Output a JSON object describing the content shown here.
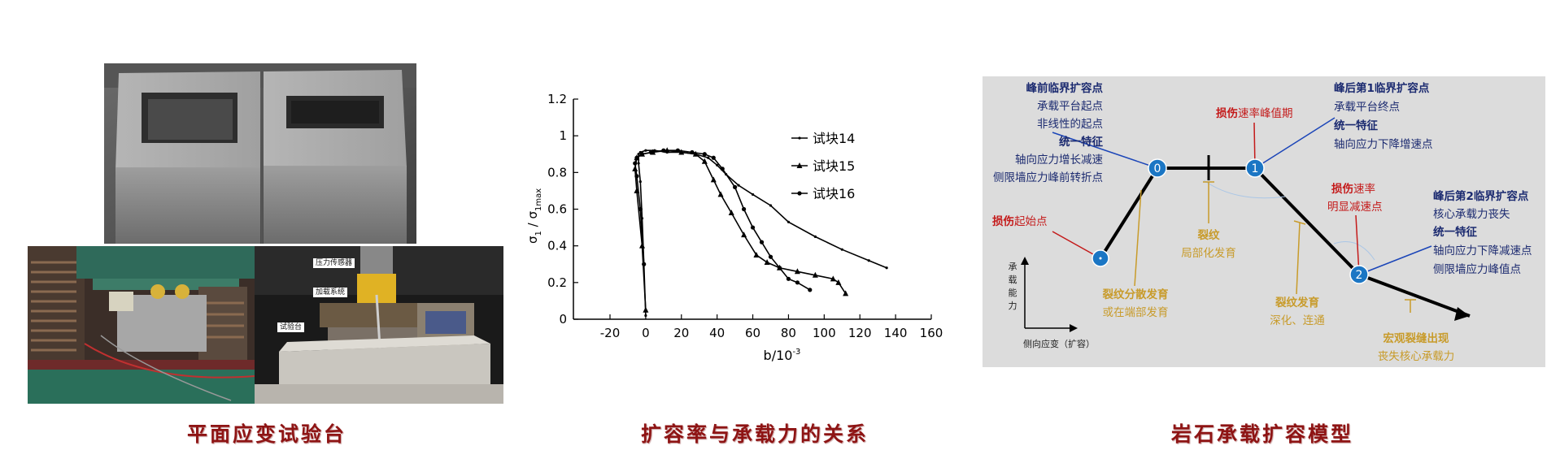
{
  "captions": {
    "left": "平面应变试验台",
    "middle": "扩容率与承载力的关系",
    "right": "岩石承载扩容模型"
  },
  "photo_labels": {
    "sensor": "压力传感器",
    "loading": "加载系统",
    "platform": "试验台"
  },
  "chart_data": {
    "type": "line",
    "title": "",
    "xlabel": "b/10",
    "xlabel_exp": "-3",
    "ylabel": "σ",
    "ylabel_sub1": "1",
    "ylabel_mid": " / σ",
    "ylabel_sub2": "1max",
    "xlim": [
      -20,
      160
    ],
    "ylim": [
      0,
      1.2
    ],
    "xticks": [
      "-20",
      "0",
      "20",
      "40",
      "60",
      "80",
      "100",
      "120",
      "140",
      "160"
    ],
    "yticks": [
      "0",
      "0.2",
      "0.4",
      "0.6",
      "0.8",
      "1",
      "1.2"
    ],
    "legend_position": "top-right",
    "series": [
      {
        "name": "试块14",
        "marker": "line",
        "x": [
          0,
          -1,
          -2,
          -3,
          -4,
          -4,
          -3,
          0,
          5,
          12,
          20,
          28,
          35,
          40,
          45,
          52,
          60,
          70,
          80,
          95,
          110,
          125,
          135
        ],
        "y": [
          0.02,
          0.3,
          0.55,
          0.75,
          0.85,
          0.9,
          0.91,
          0.92,
          0.92,
          0.91,
          0.91,
          0.9,
          0.88,
          0.84,
          0.79,
          0.73,
          0.68,
          0.62,
          0.53,
          0.45,
          0.38,
          0.32,
          0.28
        ]
      },
      {
        "name": "试块15",
        "marker": "triangle",
        "x": [
          0,
          -2,
          -5,
          -6,
          -5,
          -2,
          4,
          12,
          20,
          28,
          33,
          38,
          42,
          48,
          55,
          62,
          68,
          75,
          85,
          95,
          105,
          108,
          112
        ],
        "y": [
          0.05,
          0.4,
          0.7,
          0.82,
          0.88,
          0.9,
          0.91,
          0.92,
          0.91,
          0.9,
          0.86,
          0.76,
          0.68,
          0.58,
          0.46,
          0.35,
          0.31,
          0.28,
          0.26,
          0.24,
          0.22,
          0.2,
          0.14
        ]
      },
      {
        "name": "试块16",
        "marker": "circle",
        "x": [
          -1,
          -3,
          -5,
          -6,
          -5,
          -2,
          3,
          10,
          18,
          26,
          33,
          38,
          43,
          50,
          55,
          60,
          65,
          70,
          75,
          80,
          85,
          92
        ],
        "y": [
          0.3,
          0.6,
          0.78,
          0.85,
          0.88,
          0.9,
          0.91,
          0.92,
          0.92,
          0.91,
          0.9,
          0.88,
          0.82,
          0.72,
          0.6,
          0.5,
          0.42,
          0.34,
          0.28,
          0.22,
          0.2,
          0.16
        ]
      }
    ]
  },
  "model": {
    "pre_peak_title": "峰前临界扩容点",
    "pre_peak_lines": [
      "承载平台起点",
      "非线性的起点"
    ],
    "pre_peak_unified": "统一特征",
    "pre_peak_features": [
      "轴向应力增长减速",
      "侧限墙应力峰前转折点"
    ],
    "post1_title": "峰后第1临界扩容点",
    "post1_line": "承载平台终点",
    "post1_unified": "统一特征",
    "post1_feature": "轴向应力下降增速点",
    "post2_title": "峰后第2临界扩容点",
    "post2_line": "核心承载力丧失",
    "post2_unified": "统一特征",
    "post2_features": [
      "轴向应力下降减速点",
      "侧限墙应力峰值点"
    ],
    "damage_peak_red": "损伤",
    "damage_peak_rest": "速率峰值期",
    "damage_start_red": "损伤",
    "damage_start_rest": "起始点",
    "damage_rate_red": "损伤",
    "damage_rate_rest": "速率",
    "damage_rate_line2": "明显减速点",
    "crack1_title": "裂纹",
    "crack1_sub": "局部化发育",
    "crack2_title": "裂纹分散发育",
    "crack2_sub": "或在端部发育",
    "crack3_title": "裂纹发育",
    "crack3_sub": "深化、连通",
    "macro_title": "宏观裂缝出现",
    "macro_sub": "丧失核心承载力",
    "node0": "0",
    "node1": "1",
    "node2": "2",
    "axis_y": [
      "承",
      "载",
      "能",
      "力"
    ],
    "axis_x": "侧向应变（扩容）"
  },
  "colors": {
    "caption": "#8e1414",
    "navy": "#1b2a70",
    "red": "#c41a1a",
    "gold": "#c89b2a",
    "node": "#1b76c4",
    "panel_bg": "#dcdcdc"
  }
}
